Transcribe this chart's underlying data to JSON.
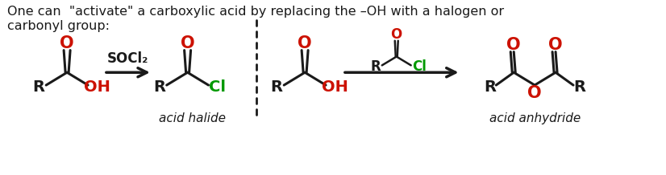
{
  "background_color": "#ffffff",
  "text_intro": "One can  \"activate\" a carboxylic acid by replacing the –OH with a halogen or\ncarbonyl group:",
  "text_fontsize": 11.5,
  "label_acid_halide": "acid halide",
  "label_acid_anhydride": "acid anhydride",
  "black": "#1a1a1a",
  "red": "#cc1100",
  "green": "#009900",
  "arrow_reagent": "SOCl₂",
  "mol_fs": 14,
  "mol_fs_small": 12
}
